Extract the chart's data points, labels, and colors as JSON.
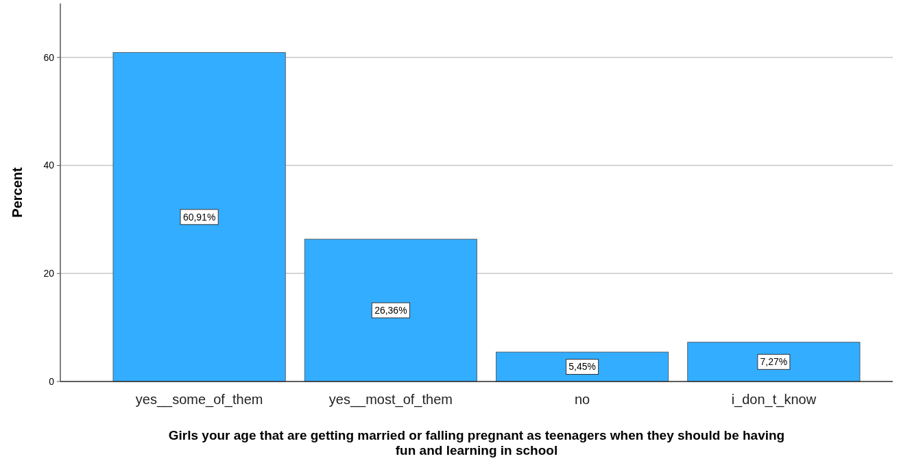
{
  "chart_data": {
    "type": "bar",
    "xlabel": "Girls your age that are getting married or falling pregnant as teenagers when they should be having fun and learning in school",
    "ylabel": "Percent",
    "categories": [
      "yes__some_of_them",
      "yes__most_of_them",
      "no",
      "i_don_t_know"
    ],
    "values": [
      60.91,
      26.36,
      5.45,
      7.27
    ],
    "value_labels": [
      "60,91%",
      "26,36%",
      "5,45%",
      "7,27%"
    ],
    "color": "#33adff",
    "ylim": [
      0,
      70
    ],
    "yticks": [
      0,
      20,
      40,
      60
    ],
    "grid": "y"
  }
}
